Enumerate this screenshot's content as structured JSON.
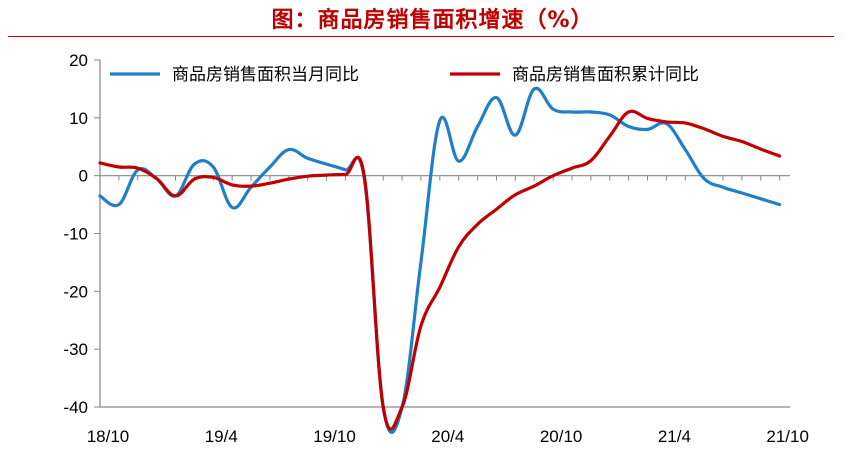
{
  "page": {
    "title": "图：商品房销售面积增速（%）"
  },
  "chart_data": {
    "type": "line",
    "title": "图：商品房销售面积增速（%）",
    "xlabel": "",
    "ylabel": "",
    "ylim": [
      -40,
      20
    ],
    "yticks": [
      20,
      10,
      0,
      -10,
      -20,
      -30,
      -40
    ],
    "x_tick_labels": [
      "18/10",
      "19/4",
      "19/10",
      "20/4",
      "20/10",
      "21/4",
      "21/10"
    ],
    "grid": false,
    "legend_position": "top",
    "colors": {
      "series_monthly": "#1f7fc8",
      "series_cumulative": "#c00000",
      "title": "#c00000",
      "axis": "#868686"
    },
    "x": [
      "18/10",
      "18/11",
      "18/12",
      "19/1",
      "19/2",
      "19/3",
      "19/4",
      "19/5",
      "19/6",
      "19/7",
      "19/8",
      "19/9",
      "19/10",
      "19/11",
      "19/12",
      "20/1",
      "20/2",
      "20/3",
      "20/4",
      "20/5",
      "20/6",
      "20/7",
      "20/8",
      "20/9",
      "20/10",
      "20/11",
      "20/12",
      "21/1",
      "21/2",
      "21/3",
      "21/4",
      "21/5",
      "21/6",
      "21/7",
      "21/8",
      "21/9",
      "21/10"
    ],
    "series": [
      {
        "name": "商品房销售面积当月同比",
        "values": [
          -3.5,
          -5,
          1,
          -0.5,
          -3.5,
          2,
          1.5,
          -5.5,
          -2,
          1.5,
          4.5,
          3,
          2,
          1,
          -0.5,
          -40,
          -40,
          -15,
          9.5,
          2.5,
          8.5,
          13.5,
          7,
          15,
          11.5,
          11,
          11,
          10.5,
          8.5,
          8,
          9,
          4.5,
          -0.5,
          -2,
          -3,
          -4,
          -5
        ]
      },
      {
        "name": "商品房销售面积累计同比",
        "values": [
          2.2,
          1.5,
          1.3,
          -0.5,
          -3.5,
          -0.6,
          -0.3,
          -1.6,
          -1.8,
          -1.3,
          -0.6,
          -0.1,
          0.1,
          0.2,
          -0.1,
          -40,
          -40,
          -26,
          -19.3,
          -12.3,
          -8.4,
          -5.8,
          -3.3,
          -1.8,
          0,
          1.3,
          2.6,
          6.8,
          11,
          9.9,
          9.3,
          9.1,
          8.1,
          6.8,
          5.9,
          4.6,
          3.4
        ]
      }
    ]
  }
}
